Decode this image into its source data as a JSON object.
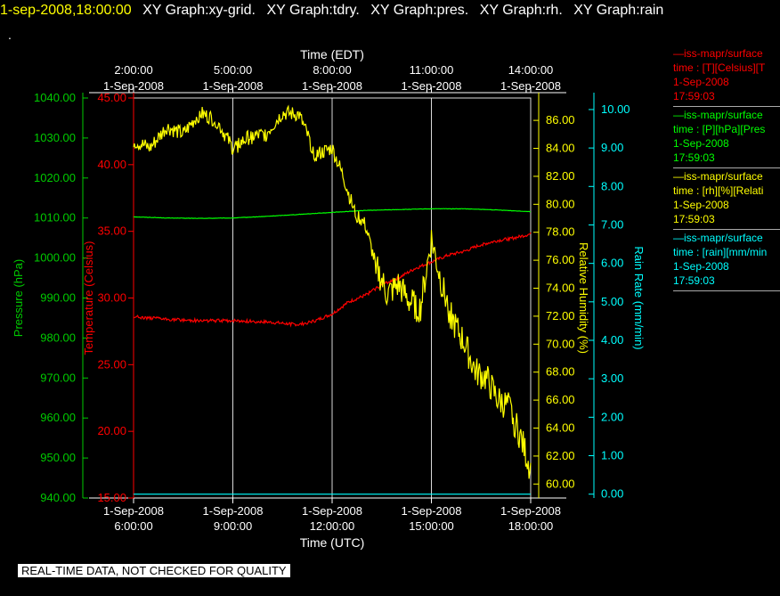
{
  "title_bar": {
    "timestamp": "1-sep-2008,18:00:00",
    "segments": [
      "XY Graph:xy-grid.",
      "XY Graph:tdry.",
      "XY Graph:pres.",
      "XY Graph:rh.",
      "XY Graph:rain"
    ]
  },
  "dot": ".",
  "footer": "REAL-TIME DATA, NOT CHECKED FOR QUALITY",
  "legend": [
    {
      "name": "—iss-mapr/surface",
      "unit": "time : [T][Celsius][T",
      "date": "1-Sep-2008",
      "time": "17:59:03",
      "color": "#ff0000"
    },
    {
      "name": "—iss-mapr/surface",
      "unit": "time : [P][hPa][Pres",
      "date": "1-Sep-2008",
      "time": "17:59:03",
      "color": "#00ff00"
    },
    {
      "name": "—iss-mapr/surface",
      "unit": "time : [rh][%][Relati",
      "date": "1-Sep-2008",
      "time": "17:59:03",
      "color": "#ffff00"
    },
    {
      "name": "—iss-mapr/surface",
      "unit": "time : [rain][mm/min",
      "date": "1-Sep-2008",
      "time": "17:59:03",
      "color": "#00ffff"
    }
  ],
  "chart_data": {
    "type": "line",
    "top_axis": {
      "label": "Time (EDT)",
      "ticks": [
        {
          "time": "2:00:00",
          "date": "1-Sep-2008"
        },
        {
          "time": "5:00:00",
          "date": "1-Sep-2008"
        },
        {
          "time": "8:00:00",
          "date": "1-Sep-2008"
        },
        {
          "time": "11:00:00",
          "date": "1-Sep-2008"
        },
        {
          "time": "14:00:00",
          "date": "1-Sep-2008"
        }
      ]
    },
    "bottom_axis": {
      "label": "Time (UTC)",
      "range": [
        "1-Sep-2008 6:00:00",
        "1-Sep-2008 18:00:00"
      ],
      "ticks": [
        {
          "time": "6:00:00",
          "date": "1-Sep-2008"
        },
        {
          "time": "9:00:00",
          "date": "1-Sep-2008"
        },
        {
          "time": "12:00:00",
          "date": "1-Sep-2008"
        },
        {
          "time": "15:00:00",
          "date": "1-Sep-2008"
        },
        {
          "time": "18:00:00",
          "date": "1-Sep-2008"
        }
      ]
    },
    "grid": true,
    "axes": {
      "pressure": {
        "label": "Pressure (hPa)",
        "range": [
          940,
          1040
        ],
        "color": "#00cc00",
        "ticks": [
          "940.00",
          "950.00",
          "960.00",
          "970.00",
          "980.00",
          "990.00",
          "1000.00",
          "1010.00",
          "1020.00",
          "1030.00",
          "1040.00"
        ]
      },
      "temperature": {
        "label": "Temperature (Celsius)",
        "range": [
          15,
          45
        ],
        "color": "#ff0000",
        "ticks": [
          "15.00",
          "20.00",
          "25.00",
          "30.00",
          "35.00",
          "40.00",
          "45.00"
        ]
      },
      "humidity": {
        "label": "Relative Humidity (%)",
        "range": [
          59,
          87.6
        ],
        "color": "#ffff00",
        "ticks": [
          "60.00",
          "62.00",
          "64.00",
          "66.00",
          "68.00",
          "70.00",
          "72.00",
          "74.00",
          "76.00",
          "78.00",
          "80.00",
          "82.00",
          "84.00",
          "86.00"
        ]
      },
      "rain": {
        "label": "Rain Rate (mm/min)",
        "range": [
          -0.1,
          10.3
        ],
        "color": "#00ffff",
        "ticks": [
          "0.00",
          "1.00",
          "2.00",
          "3.00",
          "4.00",
          "5.00",
          "6.00",
          "7.00",
          "8.00",
          "9.00",
          "10.00"
        ]
      }
    },
    "series": [
      {
        "name": "T",
        "axis": "temperature",
        "color": "#ff0000",
        "x": [
          "06:00",
          "07:00",
          "08:00",
          "09:00",
          "10:00",
          "11:00",
          "11:30",
          "12:00",
          "12:30",
          "13:00",
          "13:30",
          "14:00",
          "14:30",
          "15:00",
          "15:30",
          "16:00",
          "16:30",
          "17:00",
          "17:30",
          "18:00"
        ],
        "y": [
          28.6,
          28.4,
          28.3,
          28.3,
          28.2,
          28.0,
          28.3,
          28.8,
          29.7,
          30.2,
          31.0,
          31.5,
          32.2,
          32.7,
          33.2,
          33.5,
          34.0,
          34.3,
          34.5,
          34.8
        ]
      },
      {
        "name": "P",
        "axis": "pressure",
        "color": "#00ff00",
        "x": [
          "06:00",
          "07:00",
          "08:00",
          "09:00",
          "10:00",
          "11:00",
          "12:00",
          "13:00",
          "14:00",
          "15:00",
          "16:00",
          "17:00",
          "18:00"
        ],
        "y": [
          1010.3,
          1010.0,
          1009.9,
          1010.0,
          1010.4,
          1010.9,
          1011.4,
          1011.9,
          1012.1,
          1012.3,
          1012.3,
          1012.0,
          1011.6
        ]
      },
      {
        "name": "rh",
        "axis": "humidity",
        "color": "#ffff00",
        "x": [
          "06:00",
          "06:30",
          "07:00",
          "07:30",
          "08:00",
          "08:30",
          "09:00",
          "09:30",
          "10:00",
          "10:30",
          "11:00",
          "11:30",
          "12:00",
          "12:20",
          "12:40",
          "13:00",
          "13:20",
          "13:40",
          "14:00",
          "14:20",
          "14:40",
          "15:00",
          "15:20",
          "15:40",
          "16:00",
          "16:20",
          "16:40",
          "17:00",
          "17:20",
          "17:40",
          "18:00"
        ],
        "y": [
          84.5,
          84.0,
          85.5,
          85.0,
          86.5,
          86.0,
          84.0,
          84.8,
          85.0,
          86.5,
          86.4,
          83.5,
          84.0,
          82.0,
          79.5,
          78.5,
          75.5,
          73.5,
          74.2,
          73.0,
          72.5,
          77.5,
          74.0,
          71.5,
          70.0,
          68.0,
          67.5,
          66.0,
          65.5,
          63.5,
          61.0
        ]
      },
      {
        "name": "rain",
        "axis": "rain",
        "color": "#00ffff",
        "x": [
          "06:00",
          "18:00"
        ],
        "y": [
          0.0,
          0.0
        ]
      }
    ]
  }
}
